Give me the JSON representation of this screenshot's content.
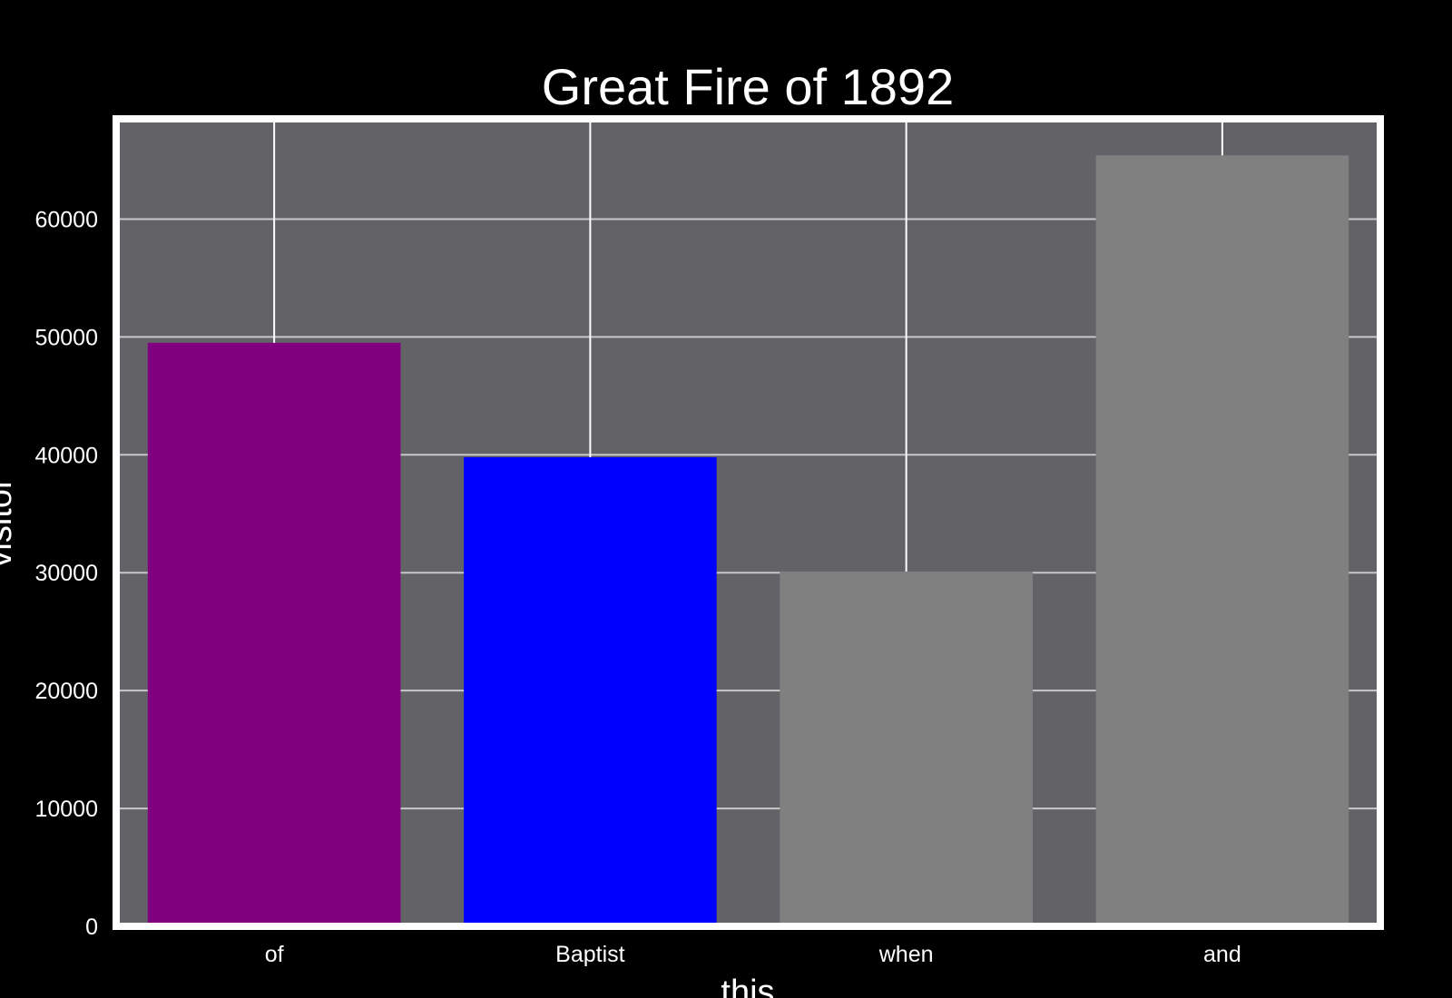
{
  "chart_data": {
    "type": "bar",
    "title": "Great Fire of 1892",
    "xlabel": "this",
    "ylabel": "visitor",
    "categories": [
      "of",
      "Baptist",
      "when",
      "and"
    ],
    "values": [
      49500,
      39800,
      30100,
      65400
    ],
    "bar_colors": [
      "#800080",
      "#0000ff",
      "#808080",
      "#808080"
    ],
    "ylim": [
      0,
      68500
    ],
    "yticks": [
      0,
      10000,
      20000,
      30000,
      40000,
      50000,
      60000
    ],
    "grid": true,
    "colors": {
      "background": "#000000",
      "plot_background": "#636267",
      "grid": "#c8c8c8",
      "frame": "#ffffff",
      "text": "#ffffff"
    }
  }
}
